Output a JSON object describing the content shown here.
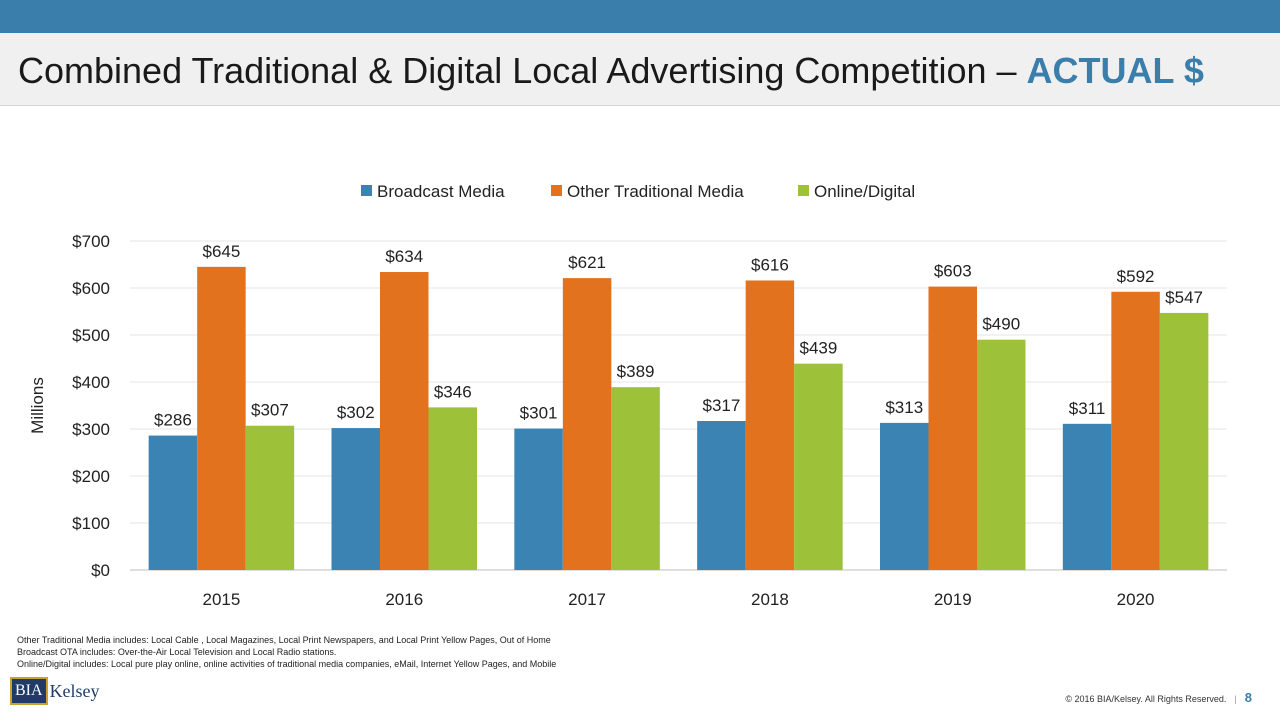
{
  "header": {
    "title_main": "Combined Traditional & Digital Local Advertising Competition – ",
    "title_highlight": "ACTUAL $"
  },
  "colors": {
    "accent": "#3a7fab",
    "broadcast": "#3b83b3",
    "other": "#e3721f",
    "digital": "#9dc23a"
  },
  "chart_data": {
    "type": "bar",
    "categories": [
      "2015",
      "2016",
      "2017",
      "2018",
      "2019",
      "2020"
    ],
    "series": [
      {
        "name": "Broadcast Media",
        "values": [
          286,
          302,
          301,
          317,
          313,
          311
        ],
        "labels": [
          "$286",
          "$302",
          "$301",
          "$317",
          "$313",
          "$311"
        ]
      },
      {
        "name": "Other Traditional Media",
        "values": [
          645,
          634,
          621,
          616,
          603,
          592
        ],
        "labels": [
          "$645",
          "$634",
          "$621",
          "$616",
          "$603",
          "$592"
        ]
      },
      {
        "name": "Online/Digital",
        "values": [
          307,
          346,
          389,
          439,
          490,
          547
        ],
        "labels": [
          "$307",
          "$346",
          "$389",
          "$439",
          "$490",
          "$547"
        ]
      }
    ],
    "ylabel": "Millions",
    "ylim": [
      0,
      700
    ],
    "yticks": [
      0,
      100,
      200,
      300,
      400,
      500,
      600,
      700
    ],
    "ytick_labels": [
      "$0",
      "$100",
      "$200",
      "$300",
      "$400",
      "$500",
      "$600",
      "$700"
    ],
    "legend": "top",
    "grid": true
  },
  "notes": [
    "Other Traditional Media includes:   Local Cable , Local Magazines, Local Print Newspapers, and Local Print Yellow Pages, Out of Home",
    "Broadcast OTA includes: Over-the-Air Local Television and Local Radio stations.",
    "Online/Digital includes:  Local pure play online,  online activities of traditional media companies, eMail, Internet Yellow Pages, and Mobile"
  ],
  "logo": {
    "box_text": "BIA",
    "rest_text": "Kelsey"
  },
  "footer": {
    "copyright": "© 2016 BIA/Kelsey. All Rights Reserved.",
    "separator": "|",
    "page": "8"
  }
}
